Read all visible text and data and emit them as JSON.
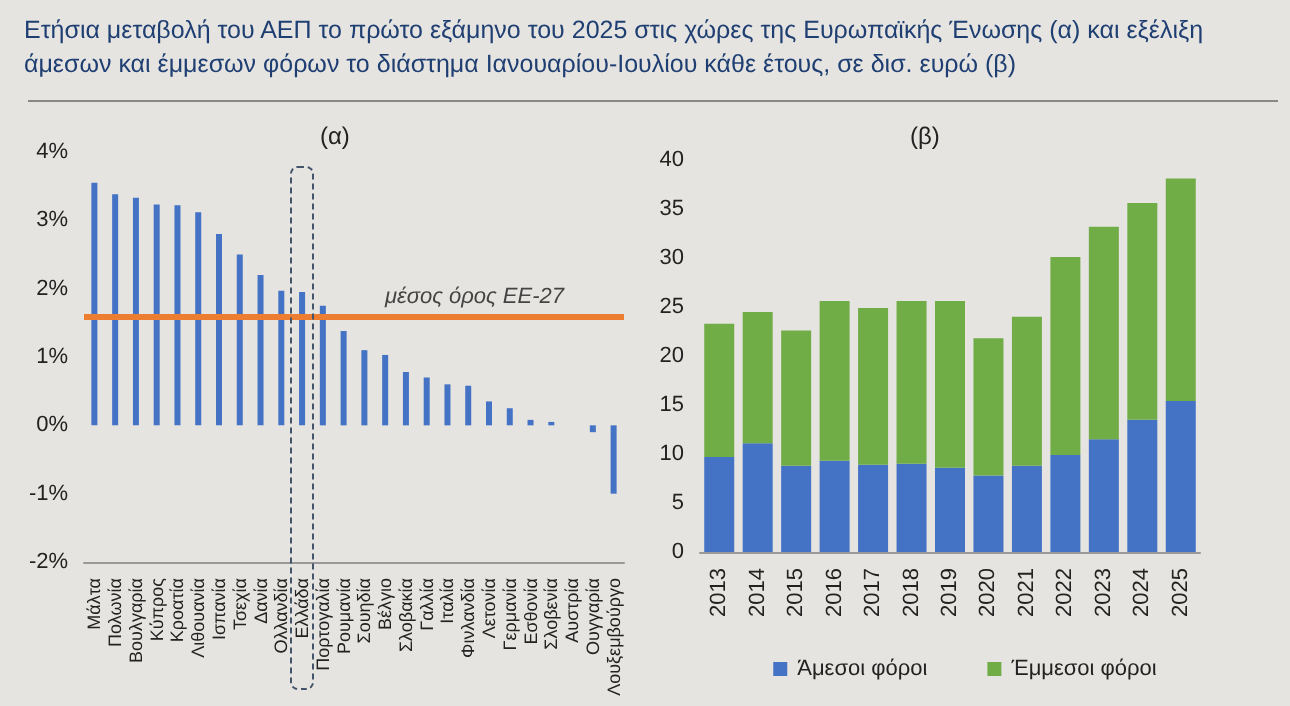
{
  "chart_data": [
    {
      "type": "bar",
      "title": "Ετήσια μεταβολή του ΑΕΠ το πρώτο εξάμηνο του 2025 στις χώρες της Ευρωπαϊκής Ένωσης (α) και εξέλιξη άμεσων και έμμεσων φόρων το διάστημα Ιανουαρίου-Ιουλίου κάθε έτους, σε δισ. ευρώ (β)",
      "subtitle": "(α)",
      "categories": [
        "Μάλτα",
        "Πολωνία",
        "Βουλγαρία",
        "Κύπρος",
        "Κροατία",
        "Λιθουανία",
        "Ισπανία",
        "Τσεχία",
        "Δανία",
        "Ολλανδία",
        "Ελλάδα",
        "Πορτογαλία",
        "Ρουμανία",
        "Σουηδία",
        "Βέλγιο",
        "Σλοβακία",
        "Γαλλία",
        "Ιταλία",
        "Φινλανδία",
        "Λετονία",
        "Γερμανία",
        "Εσθονία",
        "Σλοβενία",
        "Αυστρία",
        "Ουγγαρία",
        "Λουξεμβούργο"
      ],
      "values": [
        3.55,
        3.38,
        3.33,
        3.23,
        3.22,
        3.12,
        2.8,
        2.5,
        2.2,
        1.97,
        1.95,
        1.75,
        1.38,
        1.1,
        1.03,
        0.78,
        0.7,
        0.6,
        0.58,
        0.35,
        0.25,
        0.08,
        0.05,
        0,
        -0.1,
        -1.0
      ],
      "color": "#4472c4",
      "ylim": [
        -2,
        4
      ],
      "yticks": [
        {
          "value": -2,
          "label": "-2%"
        },
        {
          "value": -1,
          "label": "-1%"
        },
        {
          "value": 0,
          "label": "0%"
        },
        {
          "value": 1,
          "label": "1%"
        },
        {
          "value": 2,
          "label": "2%"
        },
        {
          "value": 3,
          "label": "3%"
        },
        {
          "value": 4,
          "label": "4%"
        }
      ],
      "ref_lines": [
        {
          "axis": "y",
          "value": 1.6,
          "label": "μέσος όρος ΕΕ-27",
          "color": "#ed7d31"
        }
      ],
      "grid": false,
      "legend": false
    },
    {
      "type": "bar",
      "title": "(β)",
      "stacked": true,
      "categories": [
        "2013",
        "2014",
        "2015",
        "2016",
        "2017",
        "2018",
        "2019",
        "2020",
        "2021",
        "2022",
        "2023",
        "2024",
        "2025"
      ],
      "series": [
        {
          "name": "Άμεσοι φόροι",
          "color": "#4472c4",
          "values": [
            9.7,
            11.1,
            8.8,
            9.3,
            8.9,
            9.0,
            8.6,
            7.8,
            8.8,
            9.9,
            11.5,
            13.5,
            15.4
          ]
        },
        {
          "name": "Έμμεσοι φόροι",
          "color": "#70ad47",
          "values": [
            13.6,
            13.4,
            13.8,
            16.3,
            16.0,
            16.6,
            17.0,
            14.0,
            15.2,
            20.2,
            21.7,
            22.1,
            22.7
          ]
        }
      ],
      "ylim": [
        0,
        40
      ],
      "yticks": [
        0,
        5,
        10,
        15,
        20,
        25,
        30,
        35,
        40
      ],
      "grid": false,
      "legend": "bottom"
    }
  ]
}
